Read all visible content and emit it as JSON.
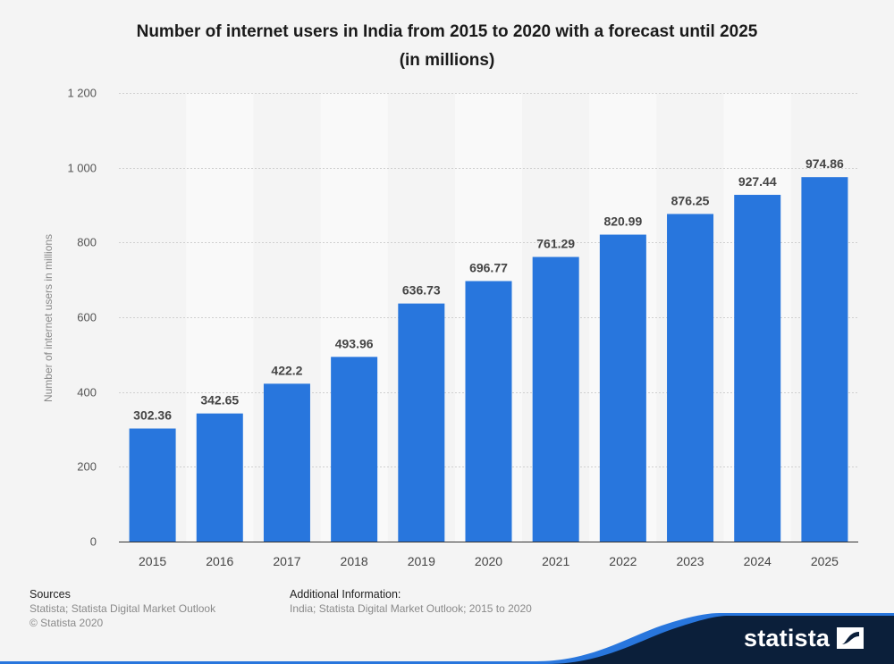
{
  "chart_data": {
    "type": "bar",
    "title": "Number of internet users in India from 2015 to 2020 with a forecast until 2025 (in millions)",
    "title_lines": [
      "Number of internet users in India from 2015 to 2020 with a forecast until 2025",
      "(in millions)"
    ],
    "categories": [
      "2015",
      "2016",
      "2017",
      "2018",
      "2019",
      "2020",
      "2021",
      "2022",
      "2023",
      "2024",
      "2025"
    ],
    "values": [
      302.36,
      342.65,
      422.2,
      493.96,
      636.73,
      696.77,
      761.29,
      820.99,
      876.25,
      927.44,
      974.86
    ],
    "value_labels": [
      "302.36",
      "342.65",
      "422.2",
      "493.96",
      "636.73",
      "696.77",
      "761.29",
      "820.99",
      "876.25",
      "927.44",
      "974.86"
    ],
    "xlabel": "",
    "ylabel": "Number of internet users in millions",
    "ylim": [
      0,
      1200
    ],
    "yticks": [
      0,
      200,
      400,
      600,
      800,
      1000,
      1200
    ],
    "ytick_labels": [
      "0",
      "200",
      "400",
      "600",
      "800",
      "1 000",
      "1 200"
    ],
    "grid": true,
    "legend": "none",
    "colors": {
      "bar": "#2876dd",
      "grid": "#d0d0d0",
      "band": "#f9f9f9",
      "background": "#f4f4f4"
    }
  },
  "footer": {
    "sources_heading": "Sources",
    "sources_lines": [
      "Statista; Statista Digital Market Outlook",
      "© Statista 2020"
    ],
    "additional_heading": "Additional Information:",
    "additional_lines": [
      "India; Statista Digital Market Outlook; 2015 to 2020"
    ]
  },
  "brand": {
    "name": "statista",
    "wave_color": "#0b1f3a",
    "accent_color": "#2876dd",
    "logo_icon": "statista-logo-icon"
  }
}
